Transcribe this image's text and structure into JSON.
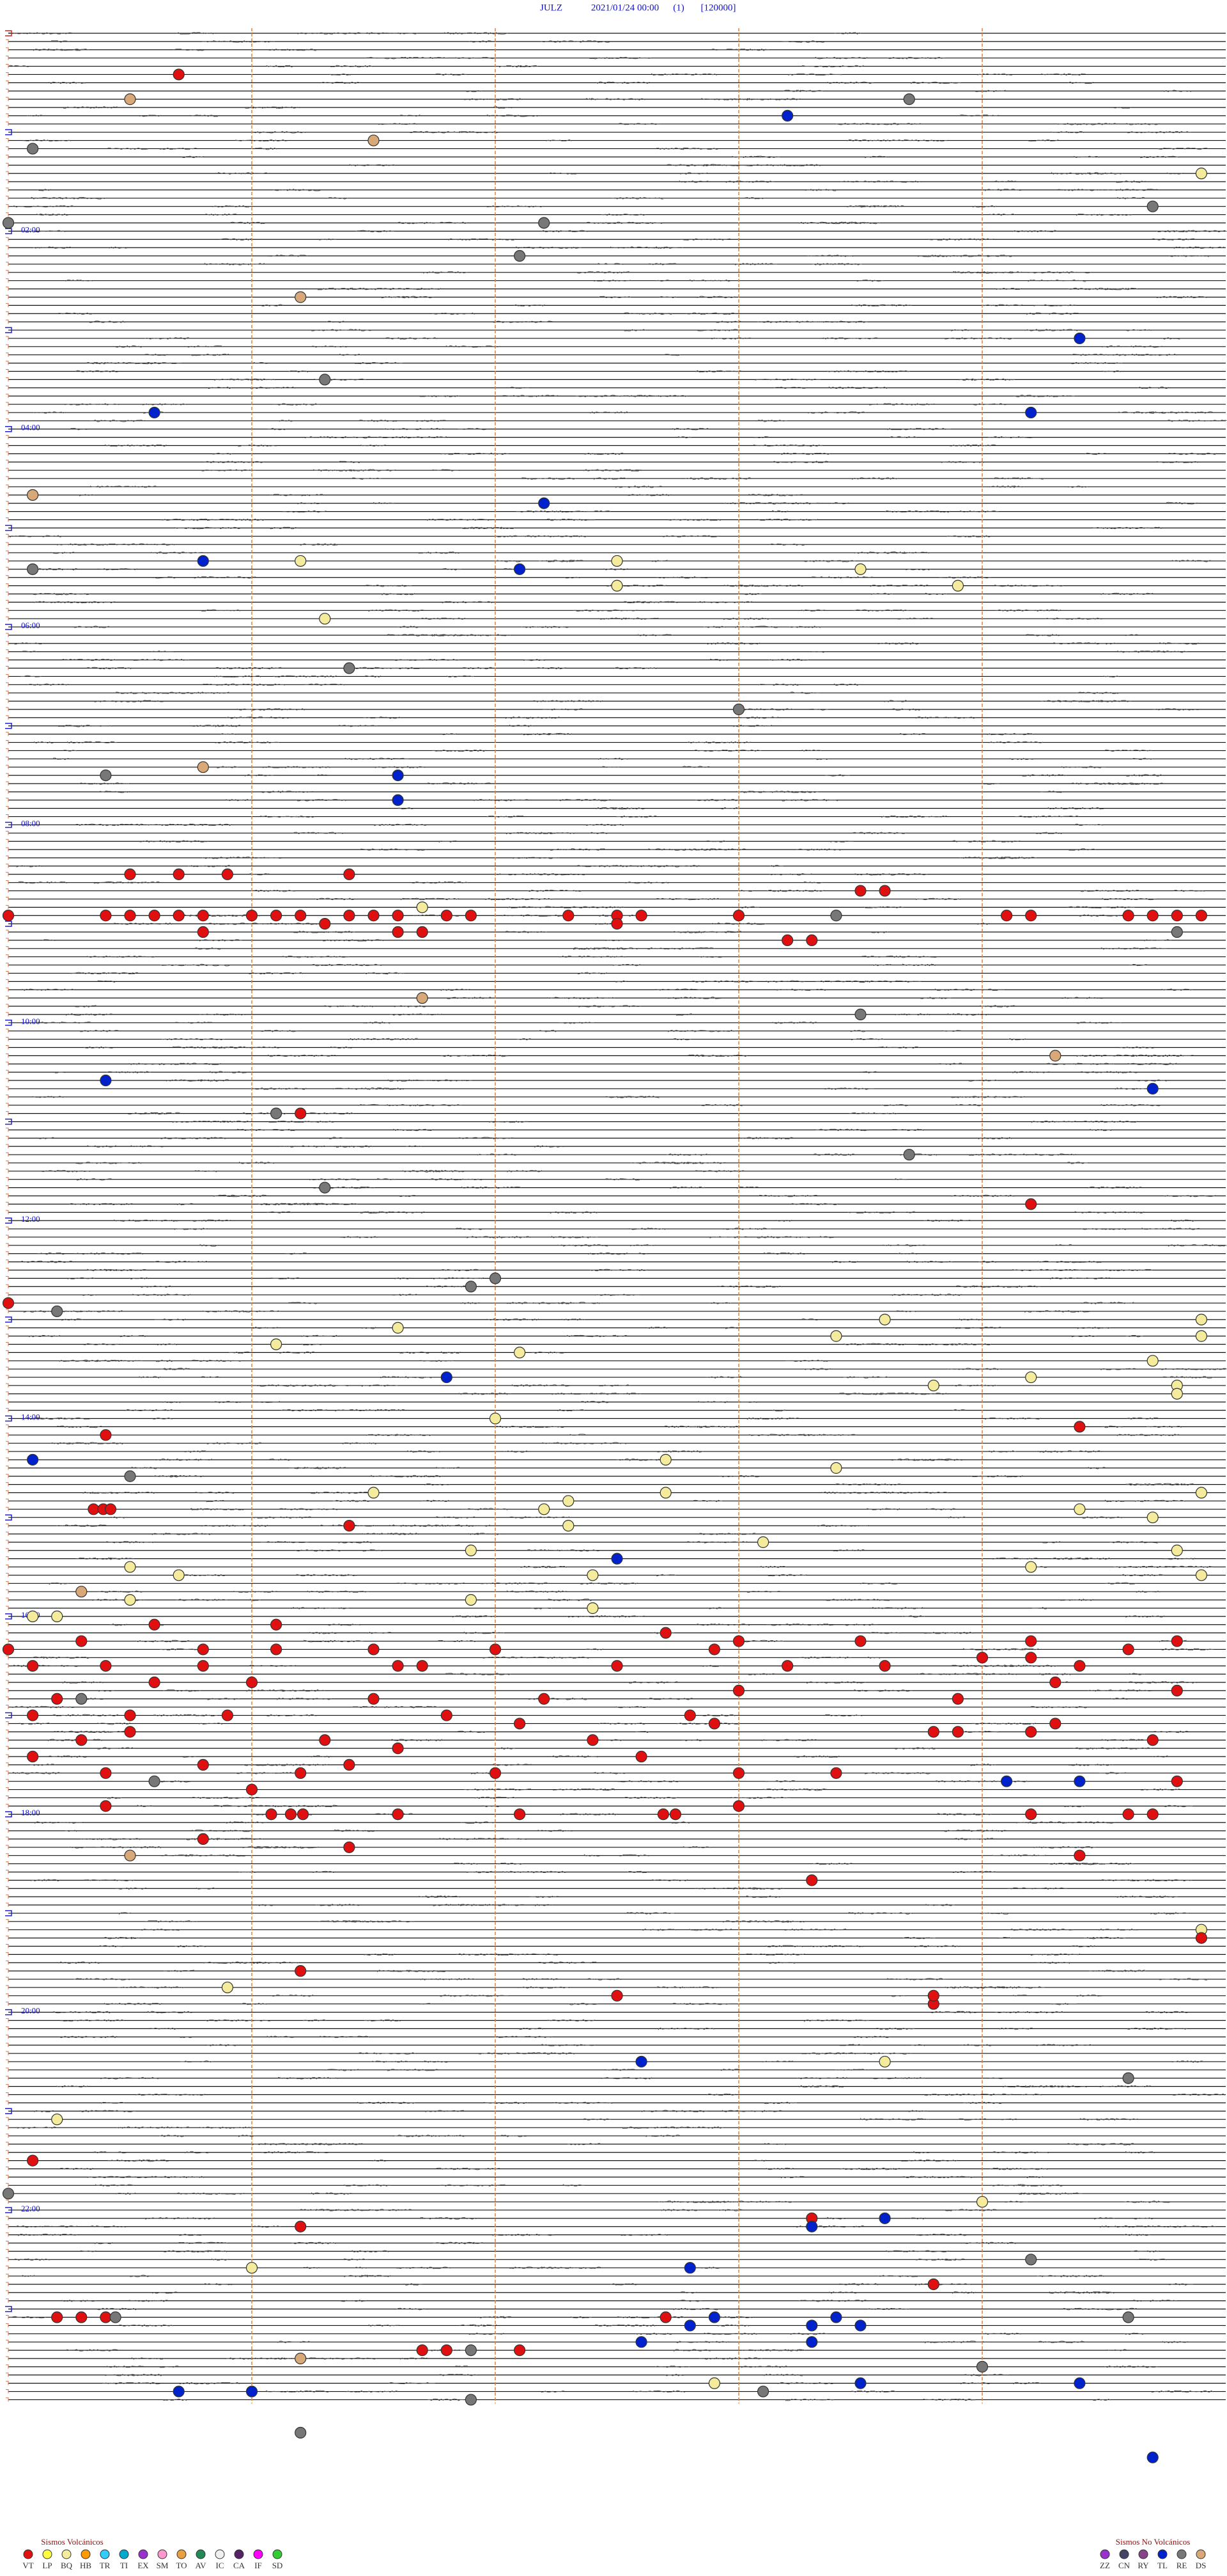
{
  "chart_data": {
    "type": "helicorder",
    "title": {
      "station": "JULZ",
      "datetime": "2021/01/24 00:00",
      "channel": "(1)",
      "scale": "[120000]"
    },
    "hour_labels": [
      "02:00",
      "04:00",
      "06:00",
      "08:00",
      "10:00",
      "12:00",
      "14:00",
      "16:00",
      "18:00",
      "20:00",
      "22:00"
    ],
    "legend": {
      "volcanic": {
        "title": "Sismos Volcánicos",
        "classes": [
          {
            "code": "VT",
            "color": "#e01010"
          },
          {
            "code": "LP",
            "color": "#ffff40"
          },
          {
            "code": "BQ",
            "color": "#f4ec9c"
          },
          {
            "code": "HB",
            "color": "#ff9900"
          },
          {
            "code": "TR",
            "color": "#33ccff"
          },
          {
            "code": "TI",
            "color": "#00aacc"
          },
          {
            "code": "EX",
            "color": "#9933cc"
          },
          {
            "code": "SM",
            "color": "#ff99cc"
          },
          {
            "code": "TO",
            "color": "#e8a040"
          },
          {
            "code": "AV",
            "color": "#228855"
          },
          {
            "code": "IC",
            "color": "#f0f0f0"
          },
          {
            "code": "CA",
            "color": "#552266"
          },
          {
            "code": "IF",
            "color": "#ff00ff"
          },
          {
            "code": "SD",
            "color": "#33cc33"
          }
        ]
      },
      "non_volcanic": {
        "title": "Sismos No Volcánicos",
        "classes": [
          {
            "code": "ZZ",
            "color": "#9933cc"
          },
          {
            "code": "CN",
            "color": "#444466"
          },
          {
            "code": "RY",
            "color": "#884488"
          },
          {
            "code": "TL",
            "color": "#0022cc"
          },
          {
            "code": "RE",
            "color": "#777777"
          },
          {
            "code": "DS",
            "color": "#d8a878"
          }
        ]
      }
    },
    "events": [
      [
        25.7,
        "VT"
      ],
      [
        40.5,
        "DS"
      ],
      [
        43.7,
        "RE"
      ],
      [
        53.2,
        "TL"
      ],
      [
        70.1,
        "RE"
      ],
      [
        66.5,
        "DS"
      ],
      [
        89.9,
        "BQ"
      ],
      [
        109.7,
        "RE"
      ],
      [
        117.2,
        "RE"
      ],
      [
        115.0,
        "RE"
      ],
      [
        137.1,
        "RE"
      ],
      [
        161.2,
        "DS"
      ],
      [
        189.4,
        "TL"
      ],
      [
        211.3,
        "RE"
      ],
      [
        230.6,
        "TL"
      ],
      [
        234.2,
        "TL"
      ],
      [
        280.1,
        "DS"
      ],
      [
        287.2,
        "TL"
      ],
      [
        320.8,
        "TL"
      ],
      [
        321.2,
        "BQ"
      ],
      [
        325.1,
        "RE"
      ],
      [
        327.1,
        "TL"
      ],
      [
        322.5,
        "BQ"
      ],
      [
        328.5,
        "BQ"
      ],
      [
        337.5,
        "BQ"
      ],
      [
        338.9,
        "BQ"
      ],
      [
        356.3,
        "BQ"
      ],
      [
        386.4,
        "RE"
      ],
      [
        413.0,
        "RE"
      ],
      [
        445.8,
        "DS"
      ],
      [
        450.4,
        "RE"
      ],
      [
        451.6,
        "TL"
      ],
      [
        466.6,
        "TL"
      ],
      [
        510.5,
        "VT"
      ],
      [
        510.7,
        "VT"
      ],
      [
        510.9,
        "VT"
      ],
      [
        511.4,
        "VT"
      ],
      [
        535.0,
        "VT"
      ],
      [
        535.4,
        "VT"
      ],
      [
        535.5,
        "VT"
      ],
      [
        535.6,
        "VT"
      ],
      [
        535.7,
        "VT"
      ],
      [
        535.8,
        "VT"
      ],
      [
        536.0,
        "VT"
      ],
      [
        536.1,
        "VT"
      ],
      [
        536.2,
        "VT"
      ],
      [
        536.4,
        "VT"
      ],
      [
        536.5,
        "VT"
      ],
      [
        536.6,
        "VT"
      ],
      [
        536.8,
        "VT"
      ],
      [
        536.9,
        "VT"
      ],
      [
        537.3,
        "VT"
      ],
      [
        537.5,
        "VT"
      ],
      [
        537.6,
        "VT"
      ],
      [
        538.0,
        "VT"
      ],
      [
        539.1,
        "VT"
      ],
      [
        539.2,
        "VT"
      ],
      [
        539.6,
        "VT"
      ],
      [
        539.7,
        "VT"
      ],
      [
        539.8,
        "VT"
      ],
      [
        539.9,
        "VT"
      ],
      [
        531.7,
        "BQ"
      ],
      [
        538.4,
        "RE"
      ],
      [
        523.5,
        "VT"
      ],
      [
        523.6,
        "VT"
      ],
      [
        545.8,
        "VT"
      ],
      [
        546.6,
        "VT"
      ],
      [
        546.7,
        "VT"
      ],
      [
        549.8,
        "RE"
      ],
      [
        541.3,
        "VT"
      ],
      [
        542.5,
        "VT"
      ],
      [
        553.2,
        "VT"
      ],
      [
        553.3,
        "VT"
      ],
      [
        586.7,
        "DS"
      ],
      [
        598.5,
        "RE"
      ],
      [
        624.3,
        "DS"
      ],
      [
        635.4,
        "TL"
      ],
      [
        644.7,
        "TL"
      ],
      [
        656.1,
        "RE"
      ],
      [
        656.2,
        "VT"
      ],
      [
        683.7,
        "RE"
      ],
      [
        701.3,
        "RE"
      ],
      [
        714.2,
        "VT"
      ],
      [
        770.0,
        "VT"
      ],
      [
        761.9,
        "RE"
      ],
      [
        757.0,
        "RE"
      ],
      [
        775.2,
        "RE"
      ],
      [
        786.6,
        "BQ"
      ],
      [
        793.4,
        "BQ"
      ],
      [
        783.6,
        "BQ"
      ],
      [
        784.9,
        "BQ"
      ],
      [
        796.1,
        "BQ"
      ],
      [
        802.1,
        "BQ"
      ],
      [
        794.9,
        "BQ"
      ],
      [
        816.8,
        "TL"
      ],
      [
        823.8,
        "BQ"
      ],
      [
        819.2,
        "BQ"
      ],
      [
        809.7,
        "BQ"
      ],
      [
        824.8,
        "BQ"
      ],
      [
        829.8,
        "BQ"
      ],
      [
        842.0,
        "BQ"
      ],
      [
        849.4,
        "VT"
      ],
      [
        850.4,
        "VT"
      ],
      [
        865.1,
        "TL"
      ],
      [
        875.5,
        "RE"
      ],
      [
        867.7,
        "BQ"
      ],
      [
        873.4,
        "BQ"
      ],
      [
        886.5,
        "BQ"
      ],
      [
        887.7,
        "BQ"
      ],
      [
        889.9,
        "BQ"
      ],
      [
        895.35,
        "VT"
      ],
      [
        895.39,
        "VT"
      ],
      [
        895.42,
        "VT"
      ],
      [
        892.3,
        "BQ"
      ],
      [
        897.2,
        "BQ"
      ],
      [
        899.4,
        "BQ"
      ],
      [
        904.7,
        "BQ"
      ],
      [
        907.3,
        "BQ"
      ],
      [
        906.4,
        "VT"
      ],
      [
        918.1,
        "BQ"
      ],
      [
        921.9,
        "BQ"
      ],
      [
        924.8,
        "BQ"
      ],
      [
        927.5,
        "TL"
      ],
      [
        930.5,
        "BQ"
      ],
      [
        934.2,
        "BQ"
      ],
      [
        935.7,
        "BQ"
      ],
      [
        937.4,
        "BQ"
      ],
      [
        939.9,
        "BQ"
      ],
      [
        945.3,
        "DS"
      ],
      [
        950.5,
        "BQ"
      ],
      [
        951.9,
        "BQ"
      ],
      [
        960.1,
        "BQ"
      ],
      [
        960.2,
        "BQ"
      ],
      [
        957.4,
        "BQ"
      ],
      [
        965.6,
        "VT"
      ],
      [
        966.1,
        "VT"
      ],
      [
        972.7,
        "VT"
      ],
      [
        980.0,
        "VT"
      ],
      [
        980.8,
        "VT"
      ],
      [
        981.1,
        "VT"
      ],
      [
        981.5,
        "VT"
      ],
      [
        982.0,
        "VT"
      ],
      [
        982.9,
        "VT"
      ],
      [
        984.6,
        "VT"
      ],
      [
        975.3,
        "VT"
      ],
      [
        978.0,
        "VT"
      ],
      [
        978.5,
        "VT"
      ],
      [
        979.2,
        "VT"
      ],
      [
        979.8,
        "VT"
      ],
      [
        990.1,
        "VT"
      ],
      [
        990.4,
        "VT"
      ],
      [
        990.8,
        "VT"
      ],
      [
        991.6,
        "VT"
      ],
      [
        991.7,
        "VT"
      ],
      [
        992.5,
        "VT"
      ],
      [
        993.2,
        "VT"
      ],
      [
        993.6,
        "VT"
      ],
      [
        994.4,
        "VT"
      ],
      [
        989.0,
        "VT"
      ],
      [
        989.2,
        "VT"
      ],
      [
        1010.2,
        "VT"
      ],
      [
        1010.3,
        "RE"
      ],
      [
        1011.5,
        "VT"
      ],
      [
        1012.2,
        "VT"
      ],
      [
        1013.9,
        "VT"
      ],
      [
        1000.6,
        "VT"
      ],
      [
        1001.0,
        "VT"
      ],
      [
        1004.3,
        "VT"
      ],
      [
        1008.0,
        "VT"
      ],
      [
        1009.8,
        "VT"
      ],
      [
        1020.1,
        "VT"
      ],
      [
        1020.5,
        "VT"
      ],
      [
        1020.9,
        "VT"
      ],
      [
        1021.8,
        "VT"
      ],
      [
        1022.8,
        "VT"
      ],
      [
        1027.1,
        "VT"
      ],
      [
        1029.3,
        "VT"
      ],
      [
        1027.9,
        "VT"
      ],
      [
        1033.9,
        "VT"
      ],
      [
        1034.2,
        "VT"
      ],
      [
        1030.5,
        "VT"
      ],
      [
        1033.8,
        "VT"
      ],
      [
        1035.3,
        "VT"
      ],
      [
        1036.3,
        "VT"
      ],
      [
        1037.4,
        "VT"
      ],
      [
        1039.7,
        "VT"
      ],
      [
        1045.1,
        "VT"
      ],
      [
        1047.6,
        "VT"
      ],
      [
        1050.8,
        "VT"
      ],
      [
        1051.4,
        "VT"
      ],
      [
        1041.6,
        "VT"
      ],
      [
        1055.4,
        "VT"
      ],
      [
        1056.2,
        "VT"
      ],
      [
        1057.0,
        "VT"
      ],
      [
        1058.0,
        "VT"
      ],
      [
        1058.4,
        "VT"
      ],
      [
        1060.6,
        "RE"
      ],
      [
        1064.1,
        "TL"
      ],
      [
        1064.4,
        "TL"
      ],
      [
        1064.8,
        "VT"
      ],
      [
        1066.0,
        "VT"
      ],
      [
        1075.4,
        "VT"
      ],
      [
        1078.0,
        "VT"
      ],
      [
        1081.08,
        "VT"
      ],
      [
        1081.16,
        "VT"
      ],
      [
        1081.21,
        "VT"
      ],
      [
        1081.6,
        "VT"
      ],
      [
        1082.1,
        "VT"
      ],
      [
        1082.69,
        "VT"
      ],
      [
        1082.74,
        "VT"
      ],
      [
        1084.2,
        "VT"
      ],
      [
        1084.6,
        "VT"
      ],
      [
        1084.7,
        "VT"
      ],
      [
        1105.5,
        "DS"
      ],
      [
        1095.8,
        "VT"
      ],
      [
        1101.4,
        "VT"
      ],
      [
        1123.3,
        "VT"
      ],
      [
        1109.4,
        "VT"
      ],
      [
        1154.9,
        "BQ"
      ],
      [
        1159.9,
        "VT"
      ],
      [
        1176.2,
        "VT"
      ],
      [
        1185.9,
        "BQ"
      ],
      [
        1192.5,
        "VT"
      ],
      [
        1198.8,
        "VT"
      ],
      [
        1193.8,
        "VT"
      ],
      [
        1232.6,
        "TL"
      ],
      [
        1233.6,
        "BQ"
      ],
      [
        1244.6,
        "RE"
      ],
      [
        1265.2,
        "BQ"
      ],
      [
        1290.1,
        "VT"
      ],
      [
        1310.0,
        "RE"
      ],
      [
        1319.0,
        "BQ"
      ],
      [
        1328.3,
        "VT"
      ],
      [
        1333.3,
        "TL"
      ],
      [
        1328.6,
        "TL"
      ],
      [
        1331.2,
        "VT"
      ],
      [
        1354.2,
        "RE"
      ],
      [
        1357.8,
        "TL"
      ],
      [
        1356.0,
        "BQ"
      ],
      [
        1368.8,
        "VT"
      ],
      [
        1385.2,
        "VT"
      ],
      [
        1385.3,
        "VT"
      ],
      [
        1385.4,
        "VT"
      ],
      [
        1385.44,
        "RE"
      ],
      [
        1387.7,
        "VT"
      ],
      [
        1387.9,
        "TL"
      ],
      [
        1388.4,
        "TL"
      ],
      [
        1389.6,
        "RE"
      ],
      [
        1392.8,
        "TL"
      ],
      [
        1393.3,
        "TL"
      ],
      [
        1393.5,
        "TL"
      ],
      [
        1402.6,
        "TL"
      ],
      [
        1403.3,
        "TL"
      ],
      [
        1406.7,
        "VT"
      ],
      [
        1406.8,
        "VT"
      ],
      [
        1406.9,
        "RE"
      ],
      [
        1407.1,
        "VT"
      ],
      [
        1411.2,
        "DS"
      ],
      [
        1419.0,
        "RE"
      ],
      [
        1427.9,
        "BQ"
      ],
      [
        1428.5,
        "TL"
      ],
      [
        1429.4,
        "TL"
      ],
      [
        1433.1,
        "RE"
      ],
      [
        1430.7,
        "TL"
      ],
      [
        1431.0,
        "TL"
      ],
      [
        1436.9,
        "RE"
      ],
      [
        1456.2,
        "RE"
      ],
      [
        1474.7,
        "TL"
      ]
    ]
  }
}
